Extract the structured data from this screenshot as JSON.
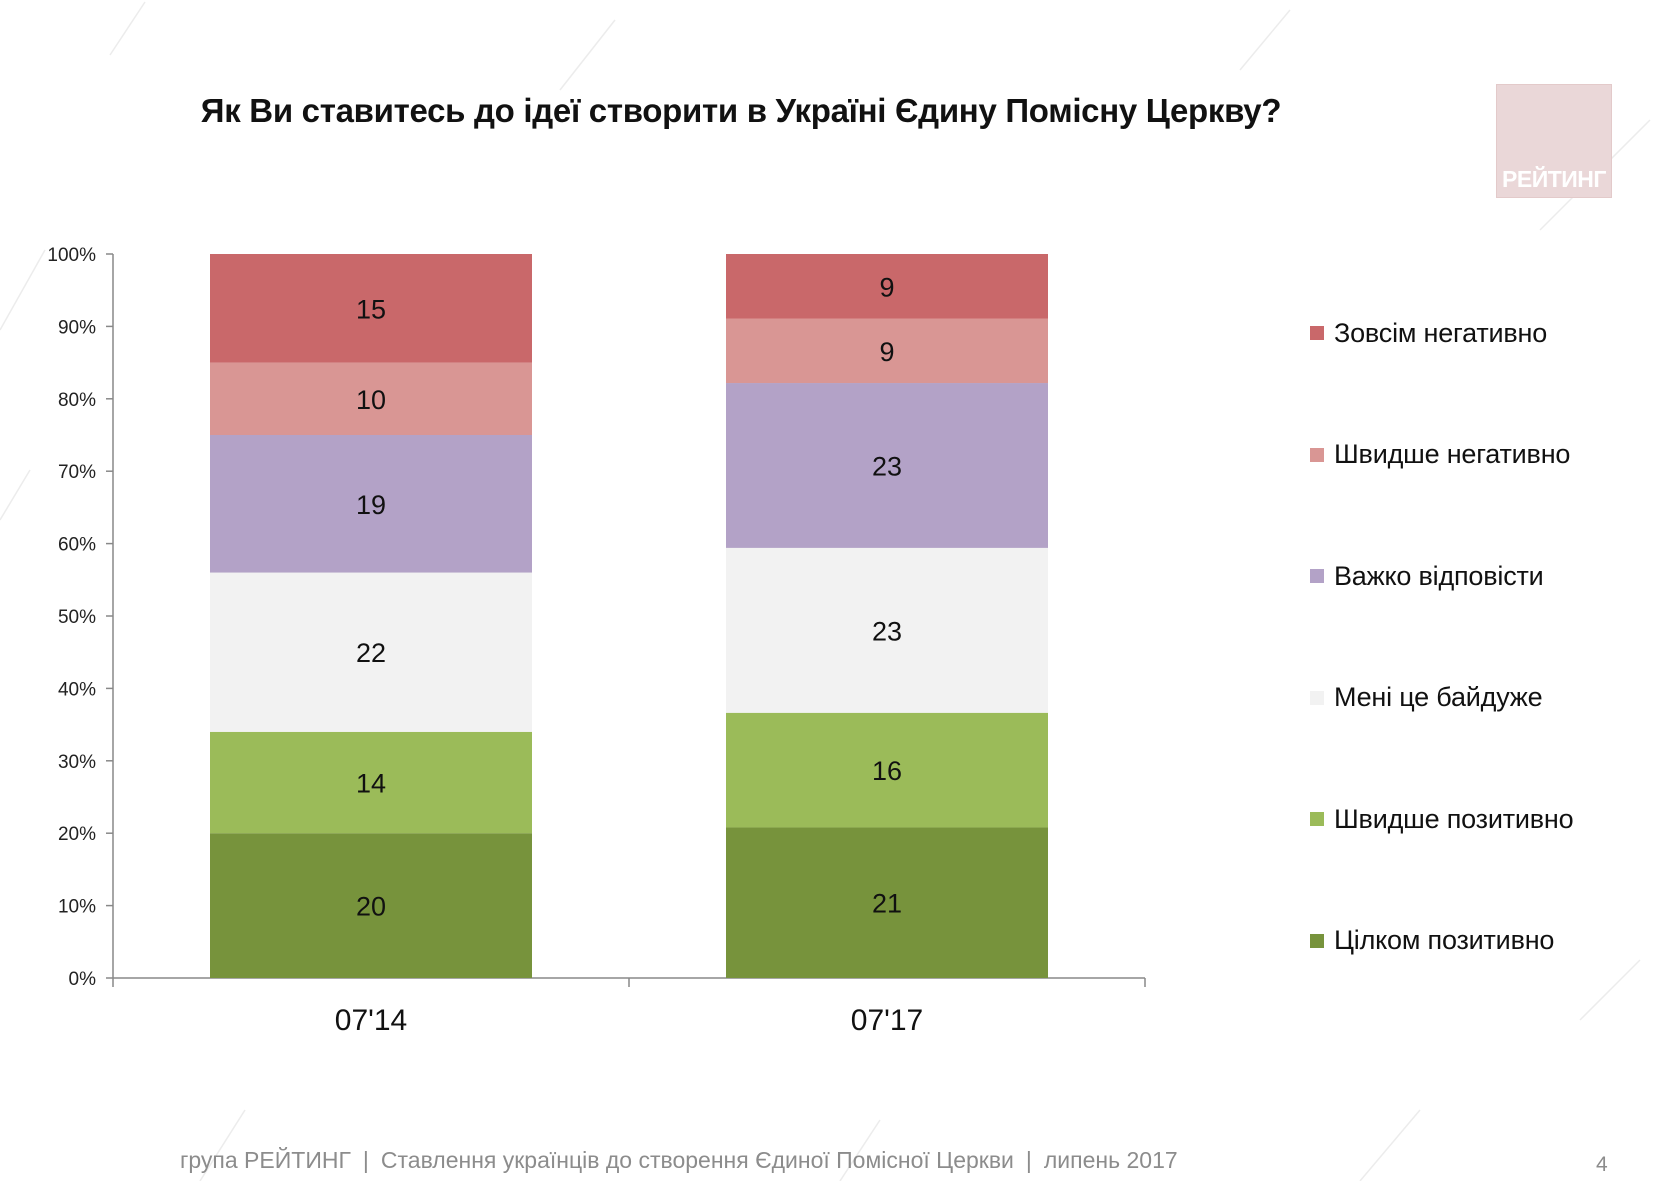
{
  "title": "Як Ви ставитесь до ідеї створити в Україні Єдину Помісну Церкву?",
  "logo_text": "РЕЙТИНГ",
  "footer": {
    "org": "група РЕЙТИНГ",
    "subject": "Ставлення українців до створення Єдиної Помісної Церкви",
    "date": "липень 2017",
    "separator": "|"
  },
  "page_number": "4",
  "chart_data": {
    "type": "bar",
    "stacked": true,
    "title": "Як Ви ставитесь до ідеї створити в Україні Єдину Помісну Церкву?",
    "categories": [
      "07'14",
      "07'17"
    ],
    "ylim": [
      0,
      100
    ],
    "yticks": [
      "0%",
      "10%",
      "20%",
      "30%",
      "40%",
      "50%",
      "60%",
      "70%",
      "80%",
      "90%",
      "100%"
    ],
    "legend_position": "right",
    "series": [
      {
        "name": "Цілком позитивно",
        "values": [
          20,
          21
        ],
        "color": "#77933c"
      },
      {
        "name": "Швидше позитивно",
        "values": [
          14,
          16
        ],
        "color": "#9bbb59"
      },
      {
        "name": "Мені це байдуже",
        "values": [
          22,
          23
        ],
        "color": "#f2f2f2"
      },
      {
        "name": "Важко відповісти",
        "values": [
          19,
          23
        ],
        "color": "#b3a2c7"
      },
      {
        "name": "Швидше негативно",
        "values": [
          10,
          9
        ],
        "color": "#d99694"
      },
      {
        "name": "Зовсім негативно",
        "values": [
          15,
          9
        ],
        "color": "#c9686a"
      }
    ]
  }
}
